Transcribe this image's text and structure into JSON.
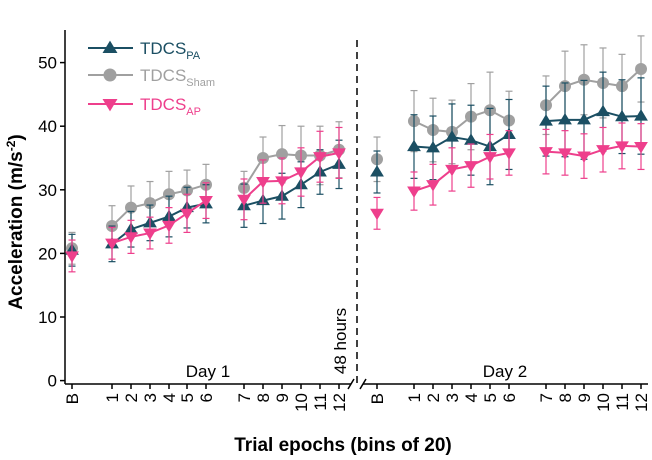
{
  "colors": {
    "PA": "#1b4f63",
    "Sham": "#a0a0a0",
    "AP": "#ee3f8c"
  },
  "chart_data": {
    "type": "line",
    "ylabel_main": "Acceleration (m/s",
    "ylabel_sup": "-2",
    "ylabel_end": ")",
    "xlabel": "Trial epochs (bins of 20)",
    "ylim": [
      0,
      55
    ],
    "yticks": [
      "0",
      "10",
      "20",
      "30",
      "40",
      "50"
    ],
    "break_label": "48 hours",
    "day_labels": [
      "Day 1",
      "Day 2"
    ],
    "xticks": {
      "day1": [
        "B",
        "1",
        "2",
        "3",
        "4",
        "5",
        "6",
        "7",
        "8",
        "9",
        "10",
        "11",
        "12"
      ],
      "day2": [
        "B",
        "1",
        "2",
        "3",
        "4",
        "5",
        "6",
        "7",
        "8",
        "9",
        "10",
        "11",
        "12"
      ]
    },
    "legend": [
      {
        "key": "PA",
        "base": "TDCS",
        "sub": "PA",
        "marker": "triangle-up"
      },
      {
        "key": "Sham",
        "base": "TDCS",
        "sub": "Sham",
        "marker": "circle"
      },
      {
        "key": "AP",
        "base": "TDCS",
        "sub": "AP",
        "marker": "triangle-down"
      }
    ],
    "series": [
      {
        "key": "PA",
        "day1": {
          "B": [
            20.5,
            2.5
          ],
          "y": [
            21.5,
            23.8,
            24.8,
            25.8,
            27.2,
            27.8,
            27.5,
            28.3,
            29.0,
            30.8,
            32.8,
            34.0
          ],
          "err": [
            2.8,
            2.8,
            2.8,
            3.2,
            3.2,
            3.0,
            3.4,
            3.6,
            3.6,
            3.6,
            3.5,
            3.8
          ]
        },
        "day2": {
          "B": [
            32.8,
            3.3
          ],
          "y": [
            36.8,
            36.6,
            38.3,
            37.8,
            36.8,
            38.7,
            40.8,
            41.0,
            41.0,
            42.3,
            41.5,
            41.6
          ],
          "err": [
            5.0,
            5.0,
            5.2,
            5.5,
            6.0,
            5.5,
            5.5,
            5.8,
            6.2,
            6.2,
            5.8,
            6.0
          ]
        }
      },
      {
        "key": "Sham",
        "day1": {
          "B": [
            20.8,
            2.5
          ],
          "y": [
            24.3,
            27.2,
            27.9,
            29.3,
            29.9,
            30.8,
            30.3,
            35.0,
            35.6,
            35.4,
            35.4,
            36.3
          ],
          "err": [
            3.2,
            3.4,
            3.4,
            3.6,
            3.2,
            3.2,
            2.6,
            3.3,
            4.5,
            4.6,
            4.6,
            4.4
          ]
        },
        "day2": {
          "B": [
            34.8,
            3.5
          ],
          "y": [
            40.8,
            39.4,
            39.1,
            41.5,
            42.5,
            40.9,
            43.3,
            46.3,
            47.3,
            46.8,
            46.3,
            49.0
          ],
          "err": [
            4.8,
            5.0,
            5.0,
            5.2,
            6.0,
            4.6,
            4.6,
            5.5,
            5.5,
            5.5,
            5.0,
            5.2
          ]
        }
      },
      {
        "key": "AP",
        "day1": {
          "B": [
            19.6,
            2.5
          ],
          "y": [
            21.6,
            22.6,
            23.2,
            24.4,
            26.3,
            28.3,
            28.5,
            31.3,
            31.4,
            32.8,
            35.2,
            35.8
          ],
          "err": [
            2.5,
            2.6,
            2.5,
            2.8,
            3.0,
            2.8,
            3.2,
            3.4,
            3.6,
            3.8,
            4.0,
            4.0
          ]
        },
        "day2": {
          "B": [
            26.3,
            2.5
          ],
          "y": [
            29.8,
            30.8,
            33.2,
            33.8,
            35.2,
            35.8,
            36.0,
            35.8,
            35.3,
            36.3,
            36.9,
            36.8
          ],
          "err": [
            3.0,
            3.2,
            3.4,
            3.4,
            3.5,
            3.5,
            3.5,
            3.5,
            3.5,
            3.5,
            3.6,
            3.6
          ]
        }
      }
    ]
  }
}
